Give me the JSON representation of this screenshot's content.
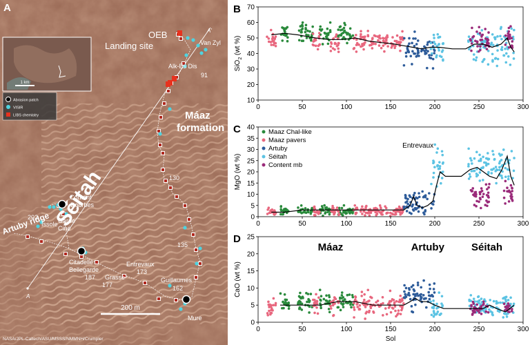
{
  "map": {
    "panel_letter": "A",
    "places": {
      "oeb": "OEB",
      "landing": "Landing site",
      "vanzyl": "Van Zyl",
      "alkesdis": "Alk-Es Dis",
      "s91": "91",
      "maaz1": "Máaz",
      "maaz2": "formation",
      "seitah": "Séitah",
      "s130": "130",
      "content": "Content",
      "dourbes": "Dourbes",
      "garde": "Garde",
      "cine": "Ciné",
      "s202": "202",
      "issole": "Issole",
      "artuby": "Artuby ridge",
      "citadelle": "Citadelle",
      "bellegarde": "Bellegarde",
      "s187": "187",
      "grasse": "Grasse",
      "s177": "177",
      "entrevaux": "Entrevaux",
      "s173": "173",
      "s135": "135",
      "guillaumes": "Guillaumes",
      "s162": "162",
      "mure": "Mure",
      "a_top": "A'",
      "a_bottom": "A"
    },
    "inset_scale": "1 km",
    "legend": [
      "Abrasion patch",
      "VISIR",
      "LIBS chemistry"
    ],
    "legend_colors": [
      "#000000",
      "#4fd3e0",
      "#e8321e"
    ],
    "scale_bar": "200 m",
    "credit": "NASA/JPL-Caltech/ASU/MSSS/NMMNH/Crumpler"
  },
  "chart_data": [
    {
      "type": "scatter",
      "panel": "B",
      "ylabel_main": "SiO",
      "ylabel_sub": "2",
      "ylabel_tail": " (wt %)",
      "xlim": [
        0,
        300
      ],
      "ylim": [
        10,
        70
      ],
      "xticks": [
        "0",
        "50",
        "100",
        "150",
        "200",
        "250",
        "300"
      ],
      "yticks": [
        "10",
        "20",
        "30",
        "40",
        "50",
        "60",
        "70"
      ],
      "trend": [
        [
          15,
          52
        ],
        [
          30,
          53
        ],
        [
          45,
          52
        ],
        [
          55,
          51
        ],
        [
          65,
          50
        ],
        [
          80,
          49
        ],
        [
          95,
          49
        ],
        [
          110,
          50
        ],
        [
          125,
          48
        ],
        [
          140,
          47
        ],
        [
          155,
          46
        ],
        [
          165,
          45
        ],
        [
          175,
          44
        ],
        [
          185,
          43
        ],
        [
          195,
          44
        ],
        [
          205,
          44
        ],
        [
          220,
          43
        ],
        [
          235,
          43
        ],
        [
          245,
          46
        ],
        [
          255,
          46
        ],
        [
          265,
          44
        ],
        [
          275,
          46
        ],
        [
          282,
          50
        ],
        [
          286,
          44
        ],
        [
          290,
          41
        ]
      ]
    },
    {
      "type": "scatter",
      "panel": "C",
      "ylabel": "MgO  (wt %)",
      "xlim": [
        0,
        300
      ],
      "ylim": [
        0,
        40
      ],
      "xticks": [
        "0",
        "50",
        "100",
        "150",
        "200",
        "250",
        "300"
      ],
      "yticks": [
        "0",
        "5",
        "10",
        "15",
        "20",
        "25",
        "30",
        "35",
        "40"
      ],
      "annotation": "Entrevaux",
      "legend": [
        "Maaz Chal-like",
        "Maaz pavers",
        "Artuby",
        "Séitah",
        "Content mb"
      ],
      "legend_colors": [
        "#2a8a3c",
        "#e8677e",
        "#2e5c9a",
        "#5cc3e3",
        "#9a2b7a"
      ],
      "trend": [
        [
          15,
          2
        ],
        [
          30,
          2
        ],
        [
          50,
          3
        ],
        [
          70,
          3
        ],
        [
          90,
          3
        ],
        [
          110,
          3
        ],
        [
          130,
          3
        ],
        [
          150,
          3
        ],
        [
          165,
          3
        ],
        [
          172,
          5
        ],
        [
          176,
          9
        ],
        [
          180,
          5
        ],
        [
          186,
          4
        ],
        [
          192,
          5
        ],
        [
          198,
          7
        ],
        [
          202,
          14
        ],
        [
          206,
          20
        ],
        [
          212,
          18
        ],
        [
          230,
          18
        ],
        [
          240,
          21
        ],
        [
          248,
          22
        ],
        [
          255,
          20
        ],
        [
          262,
          18
        ],
        [
          270,
          17
        ],
        [
          276,
          21
        ],
        [
          282,
          27
        ],
        [
          286,
          18
        ],
        [
          290,
          14
        ]
      ]
    },
    {
      "type": "scatter",
      "panel": "D",
      "ylabel": "CaO  (wt %)",
      "xlabel": "Sol",
      "xlim": [
        0,
        300
      ],
      "ylim": [
        0,
        25
      ],
      "xticks": [
        "0",
        "50",
        "100",
        "150",
        "200",
        "250",
        "300"
      ],
      "yticks": [
        "0",
        "5",
        "10",
        "15",
        "20",
        "25"
      ],
      "labels": [
        "Máaz",
        "Artuby",
        "Séitah"
      ],
      "trend": [
        [
          25,
          5
        ],
        [
          40,
          5
        ],
        [
          55,
          5
        ],
        [
          70,
          5
        ],
        [
          90,
          6
        ],
        [
          110,
          6
        ],
        [
          130,
          5
        ],
        [
          150,
          5
        ],
        [
          165,
          5
        ],
        [
          172,
          6
        ],
        [
          178,
          7
        ],
        [
          184,
          6
        ],
        [
          192,
          6
        ],
        [
          200,
          5
        ],
        [
          210,
          4
        ],
        [
          230,
          4
        ],
        [
          245,
          4
        ],
        [
          255,
          4
        ],
        [
          262,
          5
        ],
        [
          270,
          4
        ],
        [
          280,
          3
        ],
        [
          290,
          5
        ]
      ]
    }
  ]
}
